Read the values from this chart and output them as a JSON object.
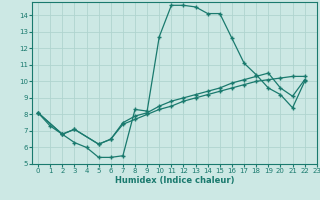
{
  "xlabel": "Humidex (Indice chaleur)",
  "xlim": [
    -0.5,
    23
  ],
  "ylim": [
    5,
    14.8
  ],
  "xticks": [
    0,
    1,
    2,
    3,
    4,
    5,
    6,
    7,
    8,
    9,
    10,
    11,
    12,
    13,
    14,
    15,
    16,
    17,
    18,
    19,
    20,
    21,
    22,
    23
  ],
  "yticks": [
    5,
    6,
    7,
    8,
    9,
    10,
    11,
    12,
    13,
    14
  ],
  "bg_color": "#cce8e4",
  "line_color": "#1a7a6e",
  "grid_color": "#b0d4cf",
  "lines": [
    {
      "x": [
        0,
        1,
        2,
        3,
        4,
        5,
        6,
        7,
        8,
        9,
        10,
        11,
        12,
        13,
        14,
        15,
        16,
        17,
        18,
        19,
        20,
        21,
        22
      ],
      "y": [
        8.1,
        7.3,
        6.8,
        6.3,
        6.0,
        5.4,
        5.4,
        5.5,
        8.3,
        8.2,
        12.7,
        14.6,
        14.6,
        14.5,
        14.1,
        14.1,
        12.6,
        11.1,
        10.4,
        9.6,
        9.2,
        8.4,
        10.0
      ]
    },
    {
      "x": [
        0,
        2,
        3,
        5,
        6,
        7,
        8,
        9,
        10,
        11,
        12,
        13,
        14,
        15,
        16,
        17,
        18,
        19,
        20,
        21,
        22
      ],
      "y": [
        8.1,
        6.8,
        7.1,
        6.2,
        6.5,
        7.4,
        7.7,
        8.0,
        8.3,
        8.5,
        8.8,
        9.0,
        9.2,
        9.4,
        9.6,
        9.8,
        10.0,
        10.1,
        10.2,
        10.3,
        10.3
      ]
    },
    {
      "x": [
        0,
        2,
        3,
        5,
        6,
        7,
        8,
        9,
        10,
        11,
        12,
        13,
        14,
        15,
        16,
        17,
        18,
        19,
        20,
        21,
        22
      ],
      "y": [
        8.1,
        6.8,
        7.1,
        6.2,
        6.5,
        7.5,
        7.9,
        8.1,
        8.5,
        8.8,
        9.0,
        9.2,
        9.4,
        9.6,
        9.9,
        10.1,
        10.3,
        10.5,
        9.6,
        9.1,
        10.1
      ]
    }
  ]
}
